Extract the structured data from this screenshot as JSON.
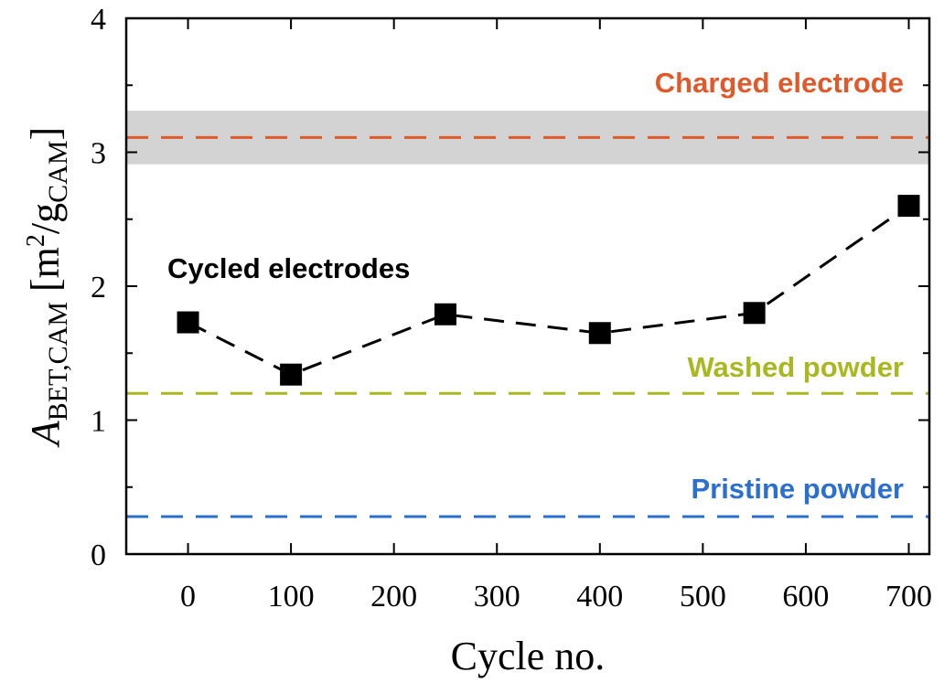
{
  "chart_data": {
    "type": "scatter",
    "title": "",
    "xlabel": "Cycle no.",
    "ylabel": {
      "main": "A",
      "sub": "BET,CAM",
      "unit_open": " [m",
      "unit_sup": "2",
      "unit_mid": "/g",
      "unit_sub": "CAM",
      "unit_close": "]"
    },
    "xlim": [
      -60,
      720
    ],
    "ylim": [
      0,
      4
    ],
    "xticks": [
      0,
      100,
      200,
      300,
      400,
      500,
      600,
      700
    ],
    "xtick_labels": [
      "0",
      "100",
      "200",
      "300",
      "400",
      "500",
      "600",
      "700"
    ],
    "yticks": [
      0,
      1,
      2,
      3,
      4
    ],
    "ytick_labels": [
      "0",
      "1",
      "2",
      "3",
      "4"
    ],
    "series": [
      {
        "name": "Cycled electrodes",
        "color": "#000000",
        "marker": "square",
        "line": "dashed",
        "x": [
          0,
          100,
          250,
          400,
          550,
          700
        ],
        "y": [
          1.73,
          1.34,
          1.79,
          1.65,
          1.8,
          2.6
        ]
      }
    ],
    "reference_lines": [
      {
        "name": "Charged electrode",
        "value": 3.11,
        "color": "#e0592a",
        "band": [
          2.91,
          3.31
        ],
        "band_color": "#d3d3d3"
      },
      {
        "name": "Washed powder",
        "value": 1.2,
        "color": "#a9b820"
      },
      {
        "name": "Pristine powder",
        "value": 0.28,
        "color": "#2b6fcf"
      }
    ],
    "annotations": {
      "cycled": "Cycled electrodes",
      "charged": "Charged electrode",
      "washed": "Washed powder",
      "pristine": "Pristine powder"
    }
  }
}
